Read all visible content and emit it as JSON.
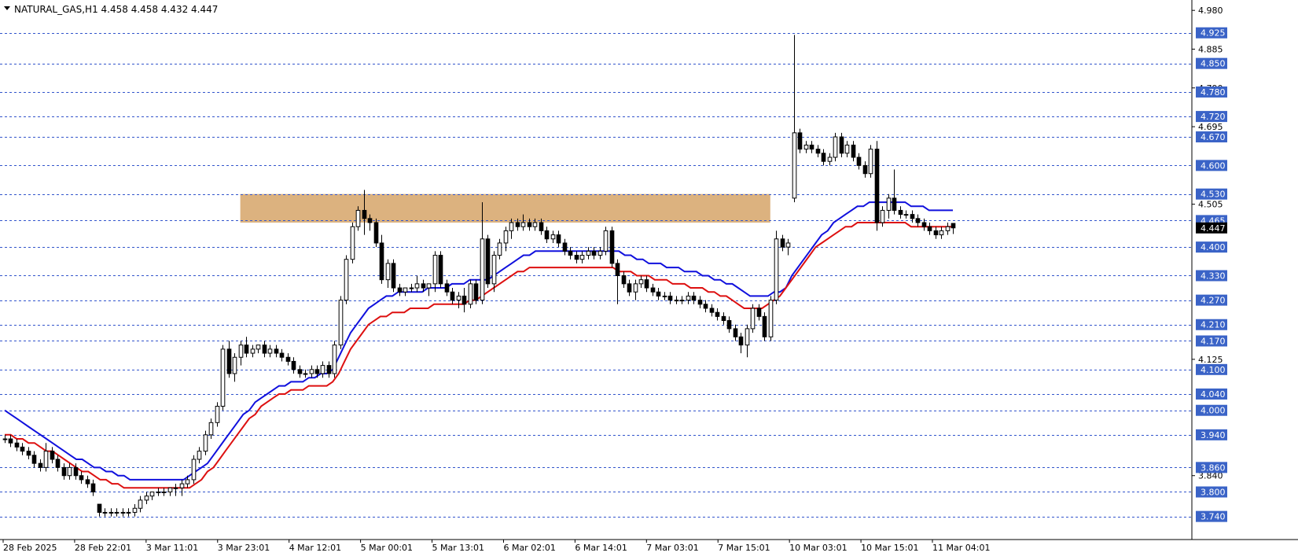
{
  "chart_data": {
    "type": "candlestick",
    "symbol_header": "NATURAL_GAS,H1  4.458 4.458 4.432 4.447",
    "y_axis": {
      "range": [
        3.72,
        4.99
      ],
      "scale_labels": [
        "4.980",
        "4.885",
        "4.790",
        "4.695",
        "4.505",
        "4.125",
        "3.840"
      ],
      "level_labels": [
        "4.925",
        "4.850",
        "4.780",
        "4.720",
        "4.670",
        "4.600",
        "4.530",
        "4.465",
        "4.400",
        "4.330",
        "4.270",
        "4.210",
        "4.170",
        "4.100",
        "4.040",
        "4.000",
        "3.940",
        "3.860",
        "3.800",
        "3.740"
      ],
      "current_price": "4.447"
    },
    "x_axis": {
      "time_labels": [
        "28 Feb 2025",
        "28 Feb 22:01",
        "3 Mar 11:01",
        "3 Mar 23:01",
        "4 Mar 12:01",
        "5 Mar 00:01",
        "5 Mar 13:01",
        "6 Mar 02:01",
        "6 Mar 14:01",
        "7 Mar 03:01",
        "7 Mar 15:01",
        "10 Mar 03:01",
        "10 Mar 15:01",
        "11 Mar 04:01"
      ]
    },
    "resistance_zone": {
      "low": 4.46,
      "high": 4.53
    },
    "colors": {
      "background": "#ffffff",
      "grid_level": "#3355cc",
      "ma_fast": "#1010dd",
      "ma_slow": "#dd1010",
      "zone": "#dcb27f",
      "candle_up_body": "#ffffff",
      "candle_down_body": "#000000",
      "current_price_bg": "#000000",
      "level_label_bg": "#3a63c7"
    },
    "candles": [
      [
        3.93,
        3.94,
        3.92,
        3.93
      ],
      [
        3.93,
        3.94,
        3.91,
        3.92
      ],
      [
        3.92,
        3.93,
        3.9,
        3.91
      ],
      [
        3.91,
        3.92,
        3.89,
        3.9
      ],
      [
        3.9,
        3.91,
        3.88,
        3.89
      ],
      [
        3.89,
        3.9,
        3.86,
        3.87
      ],
      [
        3.87,
        3.88,
        3.85,
        3.86
      ],
      [
        3.86,
        3.92,
        3.85,
        3.9
      ],
      [
        3.9,
        3.91,
        3.87,
        3.88
      ],
      [
        3.88,
        3.89,
        3.85,
        3.86
      ],
      [
        3.86,
        3.87,
        3.83,
        3.84
      ],
      [
        3.84,
        3.87,
        3.83,
        3.86
      ],
      [
        3.86,
        3.87,
        3.83,
        3.84
      ],
      [
        3.84,
        3.85,
        3.82,
        3.83
      ],
      [
        3.83,
        3.84,
        3.81,
        3.82
      ],
      [
        3.82,
        3.83,
        3.79,
        3.8
      ],
      [
        3.77,
        3.77,
        3.74,
        3.75
      ],
      [
        3.75,
        3.76,
        3.74,
        3.75
      ],
      [
        3.75,
        3.76,
        3.74,
        3.75
      ],
      [
        3.75,
        3.76,
        3.74,
        3.75
      ],
      [
        3.75,
        3.76,
        3.74,
        3.75
      ],
      [
        3.75,
        3.76,
        3.74,
        3.75
      ],
      [
        3.75,
        3.77,
        3.74,
        3.76
      ],
      [
        3.76,
        3.79,
        3.75,
        3.78
      ],
      [
        3.78,
        3.8,
        3.77,
        3.79
      ],
      [
        3.79,
        3.8,
        3.78,
        3.8
      ],
      [
        3.8,
        3.81,
        3.79,
        3.8
      ],
      [
        3.8,
        3.81,
        3.79,
        3.8
      ],
      [
        3.8,
        3.81,
        3.79,
        3.81
      ],
      [
        3.81,
        3.82,
        3.79,
        3.81
      ],
      [
        3.81,
        3.83,
        3.79,
        3.82
      ],
      [
        3.82,
        3.84,
        3.81,
        3.83
      ],
      [
        3.83,
        3.89,
        3.82,
        3.88
      ],
      [
        3.88,
        3.91,
        3.87,
        3.9
      ],
      [
        3.9,
        3.95,
        3.89,
        3.94
      ],
      [
        3.94,
        3.98,
        3.93,
        3.97
      ],
      [
        3.97,
        4.02,
        3.96,
        4.01
      ],
      [
        4.01,
        4.16,
        4.0,
        4.15
      ],
      [
        4.15,
        4.17,
        4.08,
        4.09
      ],
      [
        4.09,
        4.14,
        4.07,
        4.13
      ],
      [
        4.13,
        4.17,
        4.11,
        4.16
      ],
      [
        4.16,
        4.18,
        4.13,
        4.14
      ],
      [
        4.14,
        4.16,
        4.13,
        4.15
      ],
      [
        4.15,
        4.16,
        4.14,
        4.16
      ],
      [
        4.16,
        4.17,
        4.13,
        4.14
      ],
      [
        4.14,
        4.16,
        4.13,
        4.15
      ],
      [
        4.15,
        4.16,
        4.13,
        4.14
      ],
      [
        4.14,
        4.15,
        4.12,
        4.13
      ],
      [
        4.13,
        4.14,
        4.11,
        4.12
      ],
      [
        4.12,
        4.13,
        4.09,
        4.1
      ],
      [
        4.1,
        4.11,
        4.08,
        4.09
      ],
      [
        4.09,
        4.1,
        4.08,
        4.09
      ],
      [
        4.09,
        4.11,
        4.08,
        4.1
      ],
      [
        4.1,
        4.11,
        4.08,
        4.09
      ],
      [
        4.09,
        4.12,
        4.08,
        4.11
      ],
      [
        4.11,
        4.12,
        4.08,
        4.09
      ],
      [
        4.09,
        4.17,
        4.08,
        4.16
      ],
      [
        4.16,
        4.28,
        4.15,
        4.27
      ],
      [
        4.27,
        4.38,
        4.26,
        4.37
      ],
      [
        4.37,
        4.46,
        4.36,
        4.45
      ],
      [
        4.45,
        4.5,
        4.44,
        4.49
      ],
      [
        4.49,
        4.54,
        4.43,
        4.47
      ],
      [
        4.47,
        4.48,
        4.44,
        4.46
      ],
      [
        4.46,
        4.47,
        4.4,
        4.41
      ],
      [
        4.41,
        4.43,
        4.31,
        4.32
      ],
      [
        4.32,
        4.37,
        4.3,
        4.36
      ],
      [
        4.36,
        4.37,
        4.29,
        4.3
      ],
      [
        4.3,
        4.31,
        4.28,
        4.29
      ],
      [
        4.29,
        4.3,
        4.28,
        4.3
      ],
      [
        4.3,
        4.31,
        4.29,
        4.3
      ],
      [
        4.3,
        4.33,
        4.29,
        4.31
      ],
      [
        4.31,
        4.32,
        4.29,
        4.3
      ],
      [
        4.3,
        4.31,
        4.28,
        4.31
      ],
      [
        4.31,
        4.39,
        4.29,
        4.38
      ],
      [
        4.38,
        4.39,
        4.3,
        4.31
      ],
      [
        4.31,
        4.32,
        4.28,
        4.29
      ],
      [
        4.29,
        4.3,
        4.26,
        4.27
      ],
      [
        4.27,
        4.29,
        4.25,
        4.28
      ],
      [
        4.28,
        4.3,
        4.24,
        4.26
      ],
      [
        4.26,
        4.32,
        4.25,
        4.31
      ],
      [
        4.31,
        4.32,
        4.26,
        4.27
      ],
      [
        4.27,
        4.51,
        4.26,
        4.42
      ],
      [
        4.42,
        4.43,
        4.3,
        4.31
      ],
      [
        4.31,
        4.39,
        4.29,
        4.38
      ],
      [
        4.38,
        4.42,
        4.37,
        4.41
      ],
      [
        4.41,
        4.45,
        4.39,
        4.44
      ],
      [
        4.44,
        4.47,
        4.42,
        4.46
      ],
      [
        4.46,
        4.47,
        4.44,
        4.45
      ],
      [
        4.45,
        4.48,
        4.44,
        4.46
      ],
      [
        4.46,
        4.47,
        4.44,
        4.45
      ],
      [
        4.45,
        4.47,
        4.44,
        4.46
      ],
      [
        4.46,
        4.47,
        4.43,
        4.44
      ],
      [
        4.44,
        4.45,
        4.41,
        4.42
      ],
      [
        4.42,
        4.44,
        4.41,
        4.43
      ],
      [
        4.43,
        4.44,
        4.4,
        4.41
      ],
      [
        4.41,
        4.42,
        4.38,
        4.39
      ],
      [
        4.39,
        4.4,
        4.37,
        4.38
      ],
      [
        4.38,
        4.39,
        4.36,
        4.37
      ],
      [
        4.37,
        4.39,
        4.36,
        4.38
      ],
      [
        4.38,
        4.4,
        4.37,
        4.39
      ],
      [
        4.39,
        4.4,
        4.37,
        4.38
      ],
      [
        4.38,
        4.4,
        4.37,
        4.39
      ],
      [
        4.39,
        4.45,
        4.38,
        4.44
      ],
      [
        4.44,
        4.45,
        4.35,
        4.36
      ],
      [
        4.36,
        4.37,
        4.26,
        4.33
      ],
      [
        4.33,
        4.34,
        4.3,
        4.31
      ],
      [
        4.31,
        4.32,
        4.28,
        4.29
      ],
      [
        4.29,
        4.32,
        4.27,
        4.31
      ],
      [
        4.31,
        4.33,
        4.3,
        4.32
      ],
      [
        4.32,
        4.33,
        4.29,
        4.3
      ],
      [
        4.3,
        4.31,
        4.28,
        4.29
      ],
      [
        4.29,
        4.3,
        4.27,
        4.28
      ],
      [
        4.28,
        4.29,
        4.27,
        4.28
      ],
      [
        4.28,
        4.29,
        4.26,
        4.27
      ],
      [
        4.27,
        4.28,
        4.26,
        4.27
      ],
      [
        4.27,
        4.28,
        4.26,
        4.27
      ],
      [
        4.27,
        4.29,
        4.26,
        4.28
      ],
      [
        4.28,
        4.29,
        4.26,
        4.27
      ],
      [
        4.27,
        4.28,
        4.25,
        4.26
      ],
      [
        4.26,
        4.27,
        4.24,
        4.25
      ],
      [
        4.25,
        4.26,
        4.23,
        4.24
      ],
      [
        4.24,
        4.25,
        4.22,
        4.23
      ],
      [
        4.23,
        4.24,
        4.21,
        4.22
      ],
      [
        4.22,
        4.23,
        4.19,
        4.2
      ],
      [
        4.2,
        4.21,
        4.17,
        4.18
      ],
      [
        4.18,
        4.19,
        4.14,
        4.16
      ],
      [
        4.16,
        4.21,
        4.13,
        4.2
      ],
      [
        4.2,
        4.26,
        4.19,
        4.25
      ],
      [
        4.25,
        4.26,
        4.22,
        4.23
      ],
      [
        4.23,
        4.24,
        4.17,
        4.18
      ],
      [
        4.18,
        4.28,
        4.17,
        4.27
      ],
      [
        4.27,
        4.44,
        4.26,
        4.42
      ],
      [
        4.42,
        4.43,
        4.39,
        4.4
      ],
      [
        4.4,
        4.42,
        4.38,
        4.41
      ],
      [
        4.52,
        4.92,
        4.51,
        4.68
      ],
      [
        4.68,
        4.69,
        4.63,
        4.64
      ],
      [
        4.64,
        4.66,
        4.63,
        4.65
      ],
      [
        4.65,
        4.66,
        4.63,
        4.64
      ],
      [
        4.64,
        4.65,
        4.62,
        4.63
      ],
      [
        4.63,
        4.64,
        4.6,
        4.61
      ],
      [
        4.61,
        4.63,
        4.6,
        4.62
      ],
      [
        4.62,
        4.68,
        4.61,
        4.67
      ],
      [
        4.67,
        4.68,
        4.62,
        4.63
      ],
      [
        4.63,
        4.66,
        4.62,
        4.65
      ],
      [
        4.65,
        4.66,
        4.61,
        4.62
      ],
      [
        4.62,
        4.63,
        4.59,
        4.6
      ],
      [
        4.6,
        4.61,
        4.57,
        4.58
      ],
      [
        4.58,
        4.65,
        4.57,
        4.64
      ],
      [
        4.64,
        4.66,
        4.44,
        4.46
      ],
      [
        4.46,
        4.5,
        4.45,
        4.49
      ],
      [
        4.49,
        4.53,
        4.47,
        4.52
      ],
      [
        4.52,
        4.59,
        4.48,
        4.49
      ],
      [
        4.49,
        4.5,
        4.47,
        4.48
      ],
      [
        4.48,
        4.49,
        4.47,
        4.48
      ],
      [
        4.48,
        4.49,
        4.46,
        4.47
      ],
      [
        4.47,
        4.48,
        4.45,
        4.46
      ],
      [
        4.46,
        4.47,
        4.44,
        4.45
      ],
      [
        4.45,
        4.46,
        4.43,
        4.44
      ],
      [
        4.44,
        4.45,
        4.42,
        4.43
      ],
      [
        4.43,
        4.45,
        4.42,
        4.44
      ],
      [
        4.44,
        4.46,
        4.43,
        4.45
      ],
      [
        4.458,
        4.458,
        4.432,
        4.447
      ]
    ],
    "ma_fast_values": [
      4.0,
      3.99,
      3.98,
      3.97,
      3.96,
      3.95,
      3.94,
      3.93,
      3.92,
      3.91,
      3.9,
      3.89,
      3.88,
      3.88,
      3.87,
      3.86,
      3.86,
      3.85,
      3.85,
      3.84,
      3.84,
      3.83,
      3.83,
      3.83,
      3.83,
      3.83,
      3.83,
      3.83,
      3.83,
      3.83,
      3.83,
      3.84,
      3.85,
      3.86,
      3.87,
      3.89,
      3.91,
      3.93,
      3.95,
      3.97,
      3.99,
      4.0,
      4.02,
      4.03,
      4.04,
      4.05,
      4.06,
      4.06,
      4.07,
      4.07,
      4.07,
      4.08,
      4.08,
      4.09,
      4.09,
      4.1,
      4.13,
      4.16,
      4.19,
      4.21,
      4.23,
      4.25,
      4.26,
      4.27,
      4.28,
      4.28,
      4.29,
      4.29,
      4.29,
      4.29,
      4.29,
      4.3,
      4.3,
      4.3,
      4.3,
      4.31,
      4.31,
      4.31,
      4.32,
      4.32,
      4.32,
      4.32,
      4.33,
      4.34,
      4.35,
      4.36,
      4.37,
      4.38,
      4.38,
      4.39,
      4.39,
      4.39,
      4.39,
      4.39,
      4.39,
      4.39,
      4.39,
      4.39,
      4.39,
      4.39,
      4.39,
      4.39,
      4.39,
      4.39,
      4.38,
      4.38,
      4.37,
      4.37,
      4.36,
      4.36,
      4.36,
      4.35,
      4.35,
      4.35,
      4.34,
      4.34,
      4.34,
      4.33,
      4.33,
      4.32,
      4.32,
      4.31,
      4.31,
      4.3,
      4.29,
      4.28,
      4.28,
      4.28,
      4.28,
      4.29,
      4.29,
      4.3,
      4.33,
      4.35,
      4.37,
      4.39,
      4.41,
      4.43,
      4.44,
      4.46,
      4.47,
      4.48,
      4.49,
      4.5,
      4.5,
      4.51,
      4.51,
      4.51,
      4.51,
      4.51,
      4.51,
      4.51,
      4.5,
      4.5,
      4.5,
      4.49,
      4.49,
      4.49,
      4.49,
      4.49
    ],
    "ma_slow_values": [
      3.94,
      3.94,
      3.93,
      3.93,
      3.92,
      3.92,
      3.91,
      3.9,
      3.9,
      3.89,
      3.88,
      3.87,
      3.86,
      3.85,
      3.85,
      3.84,
      3.83,
      3.83,
      3.82,
      3.82,
      3.81,
      3.81,
      3.81,
      3.81,
      3.81,
      3.81,
      3.81,
      3.81,
      3.81,
      3.81,
      3.81,
      3.81,
      3.82,
      3.83,
      3.85,
      3.86,
      3.88,
      3.9,
      3.92,
      3.94,
      3.96,
      3.98,
      3.99,
      4.01,
      4.02,
      4.03,
      4.04,
      4.04,
      4.05,
      4.05,
      4.05,
      4.06,
      4.06,
      4.06,
      4.06,
      4.07,
      4.09,
      4.12,
      4.15,
      4.17,
      4.19,
      4.21,
      4.22,
      4.23,
      4.23,
      4.24,
      4.24,
      4.24,
      4.25,
      4.25,
      4.25,
      4.25,
      4.26,
      4.26,
      4.26,
      4.26,
      4.26,
      4.26,
      4.27,
      4.27,
      4.28,
      4.29,
      4.3,
      4.31,
      4.32,
      4.33,
      4.34,
      4.34,
      4.35,
      4.35,
      4.35,
      4.35,
      4.35,
      4.35,
      4.35,
      4.35,
      4.35,
      4.35,
      4.35,
      4.35,
      4.35,
      4.35,
      4.35,
      4.34,
      4.34,
      4.34,
      4.33,
      4.33,
      4.33,
      4.32,
      4.32,
      4.32,
      4.31,
      4.31,
      4.31,
      4.3,
      4.3,
      4.3,
      4.29,
      4.29,
      4.28,
      4.28,
      4.27,
      4.26,
      4.25,
      4.25,
      4.25,
      4.25,
      4.26,
      4.27,
      4.28,
      4.3,
      4.32,
      4.34,
      4.36,
      4.38,
      4.4,
      4.41,
      4.42,
      4.43,
      4.44,
      4.45,
      4.45,
      4.46,
      4.46,
      4.46,
      4.46,
      4.46,
      4.46,
      4.46,
      4.46,
      4.46,
      4.45,
      4.45,
      4.45,
      4.45,
      4.45,
      4.45,
      4.45,
      4.45
    ]
  }
}
